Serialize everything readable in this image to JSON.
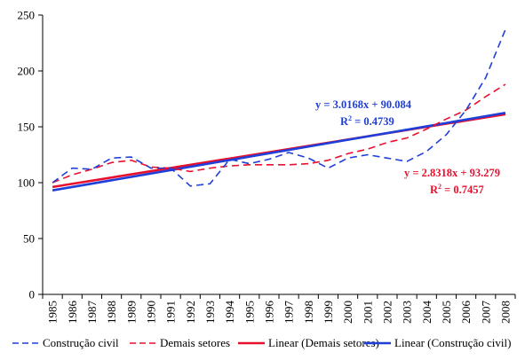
{
  "chart_data": {
    "type": "line",
    "x": [
      1985,
      1986,
      1987,
      1988,
      1989,
      1990,
      1991,
      1992,
      1993,
      1994,
      1995,
      1996,
      1997,
      1998,
      1999,
      2000,
      2001,
      2002,
      2003,
      2004,
      2005,
      2006,
      2007,
      2008
    ],
    "x_tick_labels": [
      "1985",
      "1986",
      "1987",
      "1988",
      "1989",
      "1990",
      "1991",
      "1992",
      "1993",
      "1994",
      "1995",
      "1996",
      "1997",
      "1998",
      "1999",
      "2000",
      "2001",
      "2002",
      "2003",
      "2004",
      "2005",
      "2006",
      "2007",
      "2008"
    ],
    "ylim": [
      0,
      250
    ],
    "y_ticks": [
      0,
      50,
      100,
      150,
      200,
      250
    ],
    "grid": false,
    "legend_position": "bottom",
    "series": [
      {
        "name": "Construção civil",
        "style": "dashed",
        "color": "#1F3FD8",
        "values": [
          100,
          113,
          112,
          122,
          123,
          113,
          113,
          97,
          99,
          121,
          117,
          121,
          127,
          122,
          113,
          122,
          125,
          122,
          119,
          128,
          143,
          165,
          194,
          237
        ]
      },
      {
        "name": "Demais setores",
        "style": "dashed",
        "color": "#E8102E",
        "values": [
          100,
          107,
          112,
          118,
          120,
          114,
          113,
          110,
          113,
          115,
          116,
          116,
          116,
          117,
          120,
          126,
          130,
          136,
          140,
          148,
          157,
          165,
          177,
          188
        ]
      },
      {
        "name": "Linear (Demais setores)",
        "style": "solid",
        "color": "#E8102E",
        "slope": 2.8318,
        "intercept": 93.279
      },
      {
        "name": "Linear (Construção civil)",
        "style": "solid",
        "color": "#1F3FD8",
        "slope": 3.0168,
        "intercept": 90.084
      }
    ],
    "annotations": [
      {
        "equation": "y = 3.0168x + 90.084",
        "r2_prefix": "R",
        "r2_sup": "2",
        "r2_value": " = 0.4739",
        "color": "#1F3FD8"
      },
      {
        "equation": "y = 2.8318x + 93.279",
        "r2_prefix": "R",
        "r2_sup": "2",
        "r2_value": " = 0.7457",
        "color": "#E8102E"
      }
    ]
  }
}
